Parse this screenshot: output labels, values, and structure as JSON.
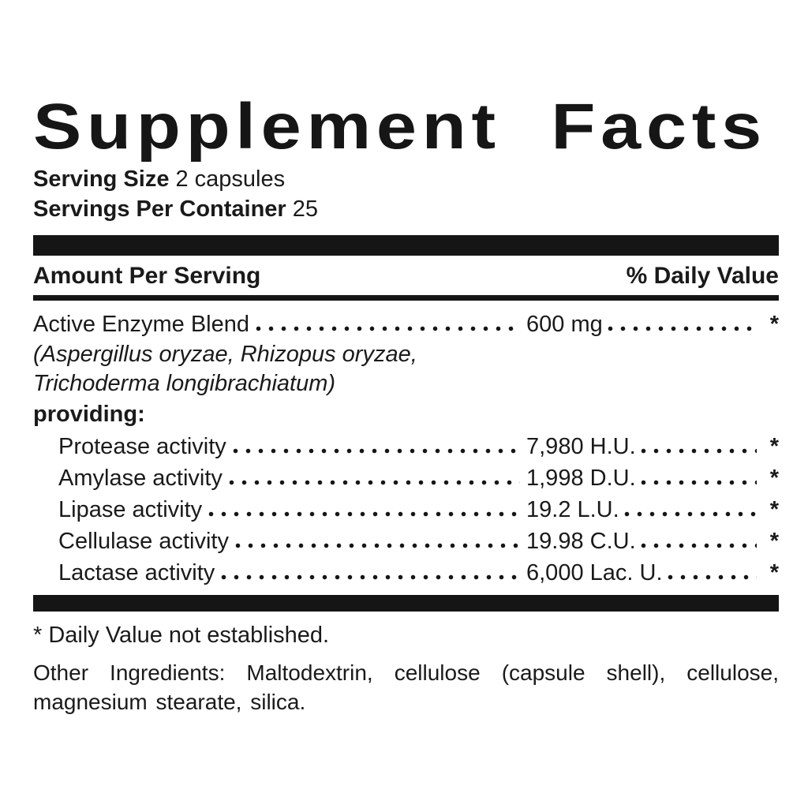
{
  "label": {
    "title": "Supplement Facts",
    "serving_size": {
      "label": "Serving Size",
      "value": "2 capsules"
    },
    "servings_per_container": {
      "label": "Servings Per Container",
      "value": "25"
    },
    "table_header": {
      "amount_column": "Amount Per Serving",
      "daily_value_column": "% Daily Value"
    },
    "rows": [
      {
        "name": "Active Enzyme Blend",
        "amount": "600 mg",
        "daily_value": "*"
      },
      {
        "name": "Protease activity",
        "amount": "7,980 H.U.",
        "daily_value": "*"
      },
      {
        "name": "Amylase activity",
        "amount": "1,998 D.U.",
        "daily_value": "*"
      },
      {
        "name": "Lipase activity",
        "amount": "19.2 L.U.",
        "daily_value": "*"
      },
      {
        "name": "Cellulase activity",
        "amount": "19.98 C.U.",
        "daily_value": "*"
      },
      {
        "name": "Lactase activity",
        "amount": "6,000 Lac. U.",
        "daily_value": "*"
      }
    ],
    "blend_sources_line1": "(Aspergillus oryzae, Rhizopus oryzae,",
    "blend_sources_line2": "Trichoderma longibrachiatum)",
    "providing_label": "providing:",
    "footnote": "* Daily Value not established.",
    "other_ingredients": "Other Ingredients: Maltodextrin, cellulose (capsule shell), cellulose, magnesium stearate, silica."
  },
  "colors": {
    "text": "#1a1a1a",
    "rules": "#151515",
    "background": "#ffffff"
  }
}
